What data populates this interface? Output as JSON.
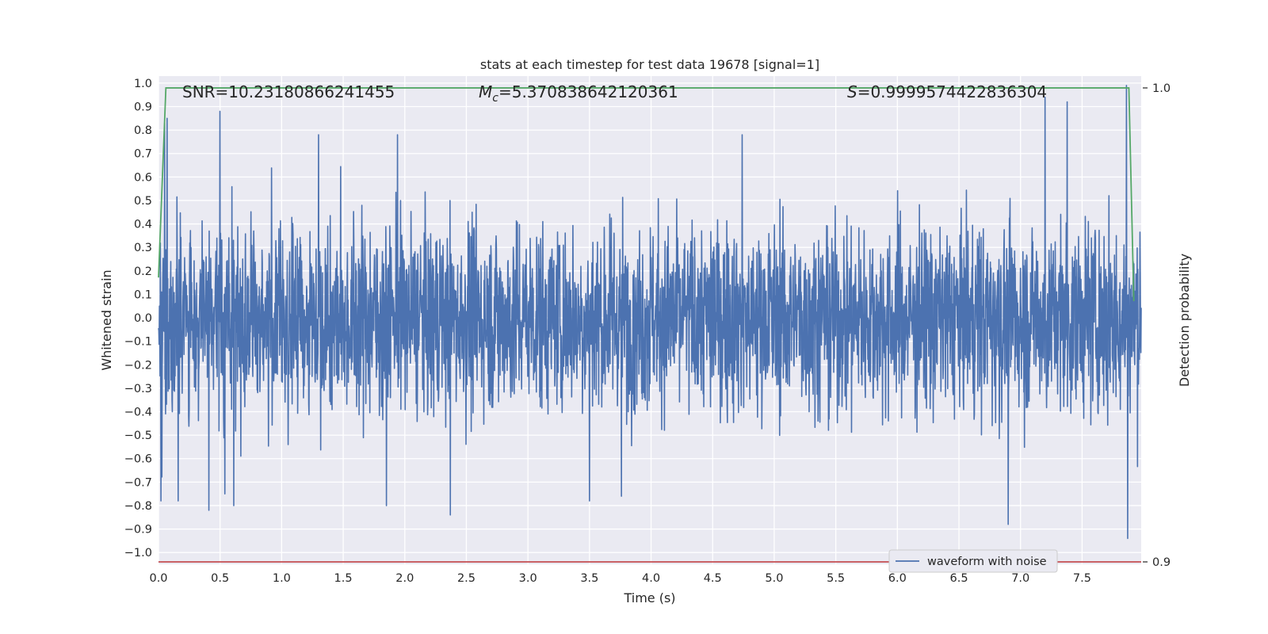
{
  "chart_data": {
    "type": "line",
    "title": "stats at each timestep for test data 19678 [signal=1]",
    "xlabel": "Time (s)",
    "ylabel": "Whitened strain",
    "ylabel_right": "Detection probability",
    "xlim": [
      0.0,
      7.98
    ],
    "ylim": [
      -1.05,
      1.03
    ],
    "ylim_right": [
      0.8995,
      1.0025
    ],
    "grid": true,
    "x_ticks": [
      "0.0",
      "0.5",
      "1.0",
      "1.5",
      "2.0",
      "2.5",
      "3.0",
      "3.5",
      "4.0",
      "4.5",
      "5.0",
      "5.5",
      "6.0",
      "6.5",
      "7.0",
      "7.5"
    ],
    "y_ticks": [
      "1.0",
      "0.9",
      "0.8",
      "0.7",
      "0.6",
      "0.5",
      "0.4",
      "0.3",
      "0.2",
      "0.1",
      "0.0",
      "−0.1",
      "−0.2",
      "−0.3",
      "−0.4",
      "−0.5",
      "−0.6",
      "−0.7",
      "−0.8",
      "−0.9",
      "−1.0"
    ],
    "y_ticks_right": [
      "1.0",
      "0.9"
    ],
    "annotations": {
      "snr": "SNR=10.23180866241455",
      "mc_symbol": "M",
      "mc_subscript": "c",
      "mc_value": "=5.370838642120361",
      "s_symbol": "S",
      "s_value": "=0.9999574422836304"
    },
    "legend": {
      "entries": [
        "waveform with noise"
      ],
      "placement": "lower center-right"
    },
    "series": [
      {
        "name": "waveform with noise",
        "color": "#4c72b0",
        "description": "whitened strain noise time series spanning 0 to 7.98 s",
        "approx_envelope": [
          -0.5,
          0.5
        ],
        "extremes": [
          {
            "x": 0.02,
            "y": -0.78
          },
          {
            "x": 0.05,
            "y": 0.83
          },
          {
            "x": 0.07,
            "y": 0.85
          },
          {
            "x": 0.16,
            "y": -0.78
          },
          {
            "x": 0.41,
            "y": -0.82
          },
          {
            "x": 0.5,
            "y": 0.88
          },
          {
            "x": 0.54,
            "y": -0.75
          },
          {
            "x": 0.61,
            "y": -0.8
          },
          {
            "x": 1.3,
            "y": 0.78
          },
          {
            "x": 1.94,
            "y": 0.78
          },
          {
            "x": 1.85,
            "y": -0.8
          },
          {
            "x": 2.37,
            "y": -0.84
          },
          {
            "x": 3.5,
            "y": -0.78
          },
          {
            "x": 3.76,
            "y": -0.76
          },
          {
            "x": 4.74,
            "y": 0.78
          },
          {
            "x": 6.9,
            "y": -0.88
          },
          {
            "x": 7.2,
            "y": 0.94
          },
          {
            "x": 7.38,
            "y": 0.92
          },
          {
            "x": 7.86,
            "y": 0.99
          },
          {
            "x": 7.87,
            "y": -0.94
          }
        ]
      },
      {
        "name": "",
        "color": "#55a868",
        "axis": "right",
        "points": [
          [
            0.0,
            0.96
          ],
          [
            0.06,
            1.0
          ],
          [
            7.88,
            1.0
          ],
          [
            7.92,
            0.955
          ]
        ]
      },
      {
        "name": "",
        "color": "#c44e52",
        "axis": "right",
        "points": [
          [
            0.0,
            0.9
          ],
          [
            7.98,
            0.9
          ]
        ]
      }
    ]
  }
}
